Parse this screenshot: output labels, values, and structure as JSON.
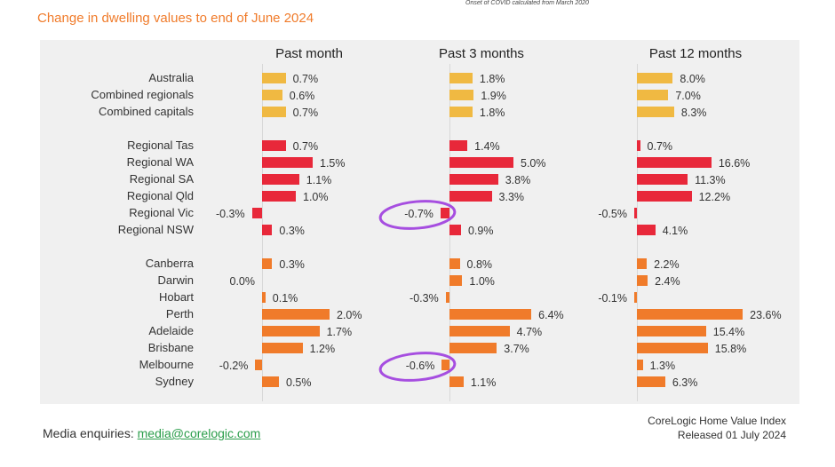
{
  "header": {
    "title": "Change in dwelling values to end of June 2024",
    "note": "Onset of COVID calculated from March 2020"
  },
  "footer": {
    "media_label": "Media enquiries:",
    "media_email": "media@corelogic.com",
    "source_line1": "CoreLogic Home Value Index",
    "source_line2": "Released 01 July 2024"
  },
  "colors": {
    "national": "#f0b942",
    "regional": "#e8283a",
    "capitals": "#f07b2a",
    "annotation": "#a64ee0",
    "panel": "#f0f0f0"
  },
  "chart_data": {
    "type": "bar",
    "orientation": "horizontal",
    "title": "Change in dwelling values to end of June 2024",
    "categories": [
      "Australia",
      "Combined regionals",
      "Combined capitals",
      "Regional Tas",
      "Regional WA",
      "Regional SA",
      "Regional Qld",
      "Regional Vic",
      "Regional NSW",
      "Canberra",
      "Darwin",
      "Hobart",
      "Perth",
      "Adelaide",
      "Brisbane",
      "Melbourne",
      "Sydney"
    ],
    "groups": [
      "national",
      "national",
      "national",
      "regional",
      "regional",
      "regional",
      "regional",
      "regional",
      "regional",
      "capitals",
      "capitals",
      "capitals",
      "capitals",
      "capitals",
      "capitals",
      "capitals",
      "capitals"
    ],
    "series": [
      {
        "name": "Past month",
        "values": [
          0.7,
          0.6,
          0.7,
          0.7,
          1.5,
          1.1,
          1.0,
          -0.3,
          0.3,
          0.3,
          0.0,
          0.1,
          2.0,
          1.7,
          1.2,
          -0.2,
          0.5
        ]
      },
      {
        "name": "Past 3 months",
        "values": [
          1.8,
          1.9,
          1.8,
          1.4,
          5.0,
          3.8,
          3.3,
          -0.7,
          0.9,
          0.8,
          1.0,
          -0.3,
          6.4,
          4.7,
          3.7,
          -0.6,
          1.1
        ]
      },
      {
        "name": "Past 12 months",
        "values": [
          8.0,
          7.0,
          8.3,
          0.7,
          16.6,
          11.3,
          12.2,
          -0.5,
          4.1,
          2.2,
          2.4,
          -0.1,
          23.6,
          15.4,
          15.8,
          1.3,
          6.3
        ]
      }
    ],
    "annotations": [
      {
        "series": "Past 3 months",
        "category": "Regional Vic",
        "type": "circled"
      },
      {
        "series": "Past 3 months",
        "category": "Melbourne",
        "type": "circled"
      }
    ],
    "unit": "%"
  }
}
